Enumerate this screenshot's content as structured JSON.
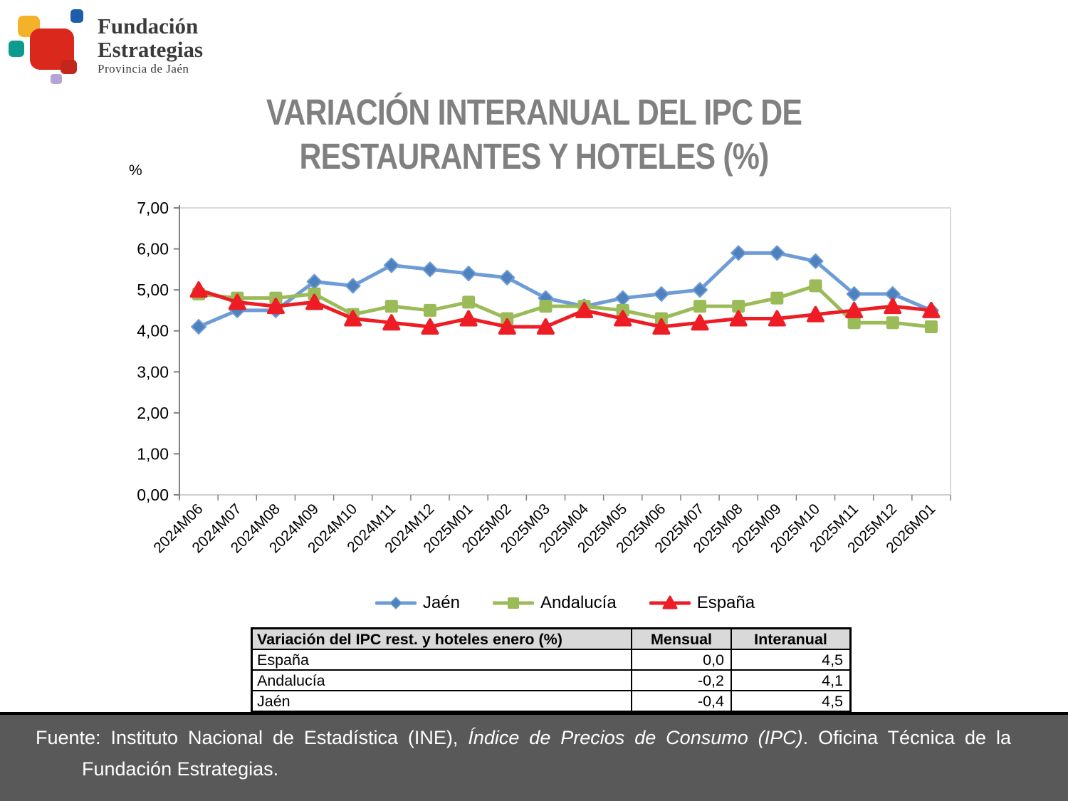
{
  "logo": {
    "name_line1": "Fundación",
    "name_line2": "Estrategias",
    "subtitle": "Provincia de Jaén",
    "colors": {
      "yellow": "#F3B229",
      "blue": "#1C5EA9",
      "teal": "#0E9B8F",
      "red_big": "#DA291C",
      "red_small": "#C3271B",
      "lavender": "#B5A5D5"
    }
  },
  "title": {
    "line1": "VARIACIÓN INTERANUAL DEL IPC DE",
    "line2": "RESTAURANTES Y HOTELES (%)",
    "color": "#808080"
  },
  "chart_data": {
    "type": "line",
    "title": "VARIACIÓN INTERANUAL DEL IPC DE RESTAURANTES Y HOTELES (%)",
    "ylabel": "%",
    "ylim": [
      0,
      7
    ],
    "ytick_labels": [
      "0,00",
      "1,00",
      "2,00",
      "3,00",
      "4,00",
      "5,00",
      "6,00",
      "7,00"
    ],
    "grid": false,
    "legend_position": "bottom",
    "categories": [
      "2024M06",
      "2024M07",
      "2024M08",
      "2024M09",
      "2024M10",
      "2024M11",
      "2024M12",
      "2025M01",
      "2025M02",
      "2025M03",
      "2025M04",
      "2025M05",
      "2025M06",
      "2025M07",
      "2025M08",
      "2025M09",
      "2025M10",
      "2025M11",
      "2025M12",
      "2026M01"
    ],
    "series": [
      {
        "name": "Jaén",
        "marker": "diamond",
        "color": "#6D9CD6",
        "marker_color": "#4F81BD",
        "values": [
          4.1,
          4.5,
          4.5,
          5.2,
          5.1,
          5.6,
          5.5,
          5.4,
          5.3,
          4.8,
          4.6,
          4.8,
          4.9,
          5.0,
          5.9,
          5.9,
          5.7,
          4.9,
          4.9,
          4.5
        ]
      },
      {
        "name": "Andalucía",
        "marker": "square",
        "color": "#9BBB59",
        "marker_color": "#9BBB59",
        "values": [
          4.9,
          4.8,
          4.8,
          4.9,
          4.4,
          4.6,
          4.5,
          4.7,
          4.3,
          4.6,
          4.6,
          4.5,
          4.3,
          4.6,
          4.6,
          4.8,
          5.1,
          4.2,
          4.2,
          4.1
        ]
      },
      {
        "name": "España",
        "marker": "triangle",
        "color": "#EE1C25",
        "marker_color": "#EE1C25",
        "values": [
          5.0,
          4.7,
          4.6,
          4.7,
          4.3,
          4.2,
          4.1,
          4.3,
          4.1,
          4.1,
          4.5,
          4.3,
          4.1,
          4.2,
          4.3,
          4.3,
          4.4,
          4.5,
          4.6,
          4.5
        ]
      }
    ]
  },
  "table": {
    "header": [
      "Variación del IPC rest. y hoteles enero (%)",
      "Mensual",
      "Interanual"
    ],
    "rows": [
      {
        "label": "España",
        "mensual": "0,0",
        "interanual": "4,5"
      },
      {
        "label": "Andalucía",
        "mensual": "-0,2",
        "interanual": "4,1"
      },
      {
        "label": "Jaén",
        "mensual": "-0,4",
        "interanual": "4,5"
      }
    ]
  },
  "footer": {
    "prefix": "Fuente: Instituto Nacional de Estadística (INE), ",
    "italic": "Índice de Precios de Consumo (IPC)",
    "suffix": ". Oficina Técnica de la Fundación Estrategias.",
    "background": "#595959"
  }
}
